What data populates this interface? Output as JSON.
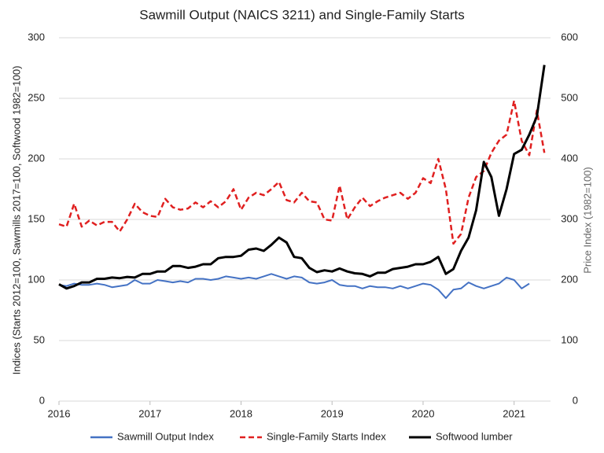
{
  "chart_data": {
    "type": "line",
    "title": "Sawmill Output (NAICS 3211) and Single-Family Starts",
    "y_label": "Indices (Starts 2012=100, Sawmills 2017=100, Softwood 1982=100)",
    "y2_label": "Price Index (1982=100)",
    "x": [
      2016,
      2016.083,
      2016.167,
      2016.25,
      2016.333,
      2016.417,
      2016.5,
      2016.583,
      2016.667,
      2016.75,
      2016.833,
      2016.917,
      2017,
      2017.083,
      2017.167,
      2017.25,
      2017.333,
      2017.417,
      2017.5,
      2017.583,
      2017.667,
      2017.75,
      2017.833,
      2017.917,
      2018,
      2018.083,
      2018.167,
      2018.25,
      2018.333,
      2018.417,
      2018.5,
      2018.583,
      2018.667,
      2018.75,
      2018.833,
      2018.917,
      2019,
      2019.083,
      2019.167,
      2019.25,
      2019.333,
      2019.417,
      2019.5,
      2019.583,
      2019.667,
      2019.75,
      2019.833,
      2019.917,
      2020,
      2020.083,
      2020.167,
      2020.25,
      2020.333,
      2020.417,
      2020.5,
      2020.583,
      2020.667,
      2020.75,
      2020.833,
      2020.917,
      2021,
      2021.083,
      2021.167,
      2021.25,
      2021.333
    ],
    "xlim": [
      2016,
      2021.4
    ],
    "xticks": [
      2016,
      2017,
      2018,
      2019,
      2020,
      2021
    ],
    "ylim": [
      0,
      300
    ],
    "yticks": [
      0,
      50,
      100,
      150,
      200,
      250,
      300
    ],
    "y2lim": [
      0,
      600
    ],
    "y2ticks": [
      0,
      100,
      200,
      300,
      400,
      500,
      600
    ],
    "grid": true,
    "legend": "bottom",
    "series": [
      {
        "name": "Sawmill Output Index",
        "color": "#4472c4",
        "dash": false,
        "values": [
          96,
          95,
          97,
          96,
          96,
          97,
          96,
          94,
          95,
          96,
          100,
          97,
          97,
          100,
          99,
          98,
          99,
          98,
          101,
          101,
          100,
          101,
          103,
          102,
          101,
          102,
          101,
          103,
          105,
          103,
          101,
          103,
          102,
          98,
          97,
          98,
          100,
          96,
          95,
          95,
          93,
          95,
          94,
          94,
          93,
          95,
          93,
          95,
          97,
          96,
          92,
          85,
          92,
          93,
          98,
          95,
          93,
          95,
          97,
          102,
          100,
          93,
          97,
          null,
          null
        ]
      },
      {
        "name": "Single-Family Starts Index",
        "color": "#e02020",
        "dash": true,
        "values": [
          146,
          144,
          163,
          144,
          149,
          145,
          148,
          148,
          140,
          150,
          163,
          156,
          153,
          152,
          167,
          160,
          158,
          159,
          164,
          160,
          165,
          160,
          165,
          175,
          158,
          168,
          172,
          170,
          175,
          181,
          166,
          164,
          172,
          165,
          164,
          150,
          149,
          178,
          150,
          160,
          168,
          161,
          165,
          168,
          170,
          172,
          167,
          172,
          184,
          180,
          200,
          175,
          130,
          138,
          168,
          185,
          190,
          205,
          215,
          220,
          248,
          215,
          203,
          240,
          205
        ]
      },
      {
        "name": "Softwood lumber",
        "color": "#000000",
        "dash": false,
        "axis": "y2",
        "values": [
          193,
          186,
          190,
          196,
          196,
          202,
          202,
          204,
          203,
          205,
          204,
          210,
          210,
          214,
          214,
          223,
          223,
          220,
          222,
          226,
          226,
          236,
          238,
          238,
          240,
          250,
          252,
          248,
          258,
          270,
          262,
          238,
          236,
          220,
          213,
          216,
          214,
          219,
          214,
          211,
          210,
          206,
          212,
          212,
          218,
          220,
          222,
          226,
          226,
          230,
          238,
          210,
          218,
          248,
          270,
          315,
          395,
          370,
          306,
          350,
          408,
          415,
          440,
          470,
          555
        ]
      }
    ]
  }
}
